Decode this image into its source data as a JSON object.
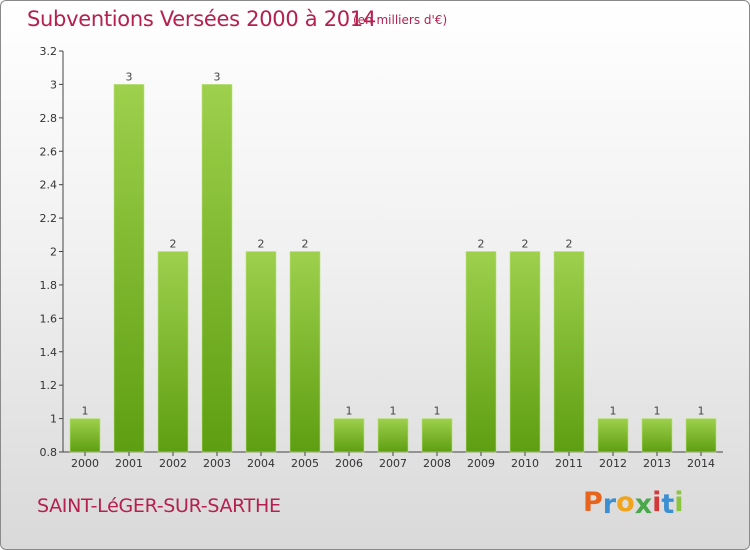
{
  "title": "Subventions Versées 2000 à 2014",
  "unit_note": "(en milliers d'€)",
  "commune": "SAINT-LéGER-SUR-SARTHE",
  "logo": {
    "letters": [
      "P",
      "r",
      "o",
      "x",
      "i",
      "t",
      "i"
    ],
    "colors": [
      "#e8631c",
      "#3c8fd1",
      "#f0a41c",
      "#4aa84a",
      "#d23a3a",
      "#3c8fd1",
      "#8bc53f"
    ]
  },
  "colors": {
    "bar_light": "#9ed04d",
    "bar_dark": "#5e9e12",
    "accent": "#b5204f"
  },
  "chart_data": {
    "type": "bar",
    "categories": [
      "2000",
      "2001",
      "2002",
      "2003",
      "2004",
      "2005",
      "2006",
      "2007",
      "2008",
      "2009",
      "2010",
      "2011",
      "2012",
      "2013",
      "2014"
    ],
    "values": [
      1,
      3,
      2,
      3,
      2,
      2,
      1,
      1,
      1,
      2,
      2,
      2,
      1,
      1,
      1
    ],
    "value_labels": [
      "1",
      "3",
      "2",
      "3",
      "2",
      "2",
      "1",
      "1",
      "1",
      "2",
      "2",
      "2",
      "1",
      "1",
      "1"
    ],
    "yticks": [
      0.8,
      1,
      1.2,
      1.4,
      1.6,
      1.8,
      2,
      2.2,
      2.4,
      2.6,
      2.8,
      3,
      3.2
    ],
    "ytick_labels": [
      "0.8",
      "1",
      "1.2",
      "1.4",
      "1.6",
      "1.8",
      "2",
      "2.2",
      "2.4",
      "2.6",
      "2.8",
      "3",
      "3.2"
    ],
    "ylim": [
      0.8,
      3.2
    ],
    "grid": false
  }
}
